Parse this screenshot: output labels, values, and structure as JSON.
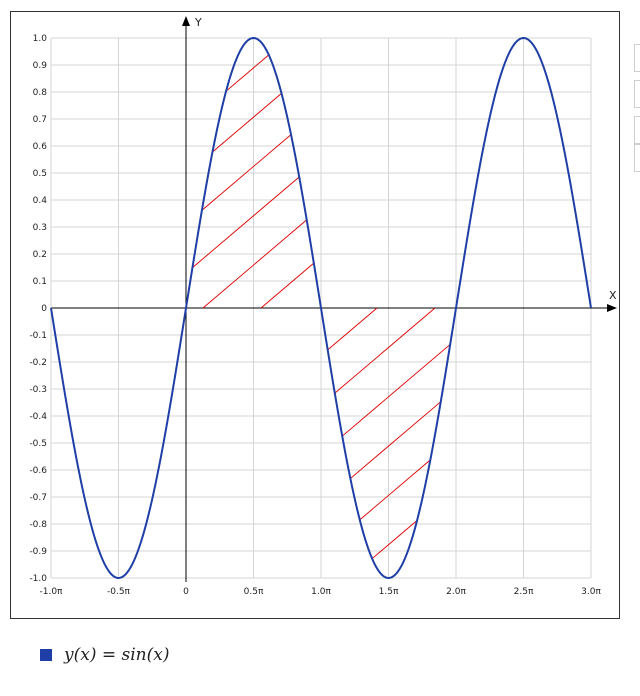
{
  "chart_data": {
    "type": "line",
    "function": "sin(x)",
    "x_unit": "π",
    "xlim": [
      -1.0,
      3.0
    ],
    "ylim": [
      -1.0,
      1.0
    ],
    "x_ticks": [
      -1.0,
      -0.5,
      0,
      0.5,
      1.0,
      1.5,
      2.0,
      2.5,
      3.0
    ],
    "x_tick_labels": [
      "-1.0π",
      "-0.5π",
      "0",
      "0.5π",
      "1.0π",
      "1.5π",
      "2.0π",
      "2.5π",
      "3.0π"
    ],
    "y_ticks": [
      1.0,
      0.9,
      0.8,
      0.7,
      0.6,
      0.5,
      0.4,
      0.3,
      0.2,
      0.1,
      0,
      -0.1,
      -0.2,
      -0.3,
      -0.4,
      -0.5,
      -0.6,
      -0.7,
      -0.8,
      -0.9,
      -1.0
    ],
    "y_tick_labels": [
      "1.0",
      "0.9",
      "0.8",
      "0.7",
      "0.6",
      "0.5",
      "0.4",
      "0.3",
      "0.2",
      "0.1",
      "0",
      "-0.1",
      "-0.2",
      "-0.3",
      "-0.4",
      "-0.5",
      "-0.6",
      "-0.7",
      "-0.8",
      "-0.9",
      "-1.0"
    ],
    "xlabel": "X",
    "ylabel": "Y",
    "grid": true,
    "series": [
      {
        "name": "y(x) = sin(x)",
        "color": "#1f3fa6",
        "x": [
          -1.0,
          -0.875,
          -0.75,
          -0.625,
          -0.5,
          -0.375,
          -0.25,
          -0.125,
          0,
          0.125,
          0.25,
          0.375,
          0.5,
          0.625,
          0.75,
          0.875,
          1.0,
          1.125,
          1.25,
          1.375,
          1.5,
          1.625,
          1.75,
          1.875,
          2.0,
          2.125,
          2.25,
          2.375,
          2.5,
          2.625,
          2.75,
          2.875,
          3.0
        ],
        "y": [
          0,
          -0.383,
          -0.707,
          -0.924,
          -1,
          -0.924,
          -0.707,
          -0.383,
          0,
          0.383,
          0.707,
          0.924,
          1,
          0.924,
          0.707,
          0.383,
          0,
          -0.383,
          -0.707,
          -0.924,
          -1,
          -0.924,
          -0.707,
          -0.383,
          0,
          0.383,
          0.707,
          0.924,
          1,
          0.924,
          0.707,
          0.383,
          0
        ]
      }
    ],
    "shaded_regions": [
      {
        "x_range": [
          0,
          1.0
        ],
        "between": "curve and x-axis",
        "color": "#dd0000"
      },
      {
        "x_range": [
          1.0,
          2.0
        ],
        "between": "curve and x-axis",
        "color": "#dd0000"
      }
    ]
  },
  "legend": {
    "swatch_color": "#1f3fa6",
    "label": "y(x) = sin(x)"
  }
}
